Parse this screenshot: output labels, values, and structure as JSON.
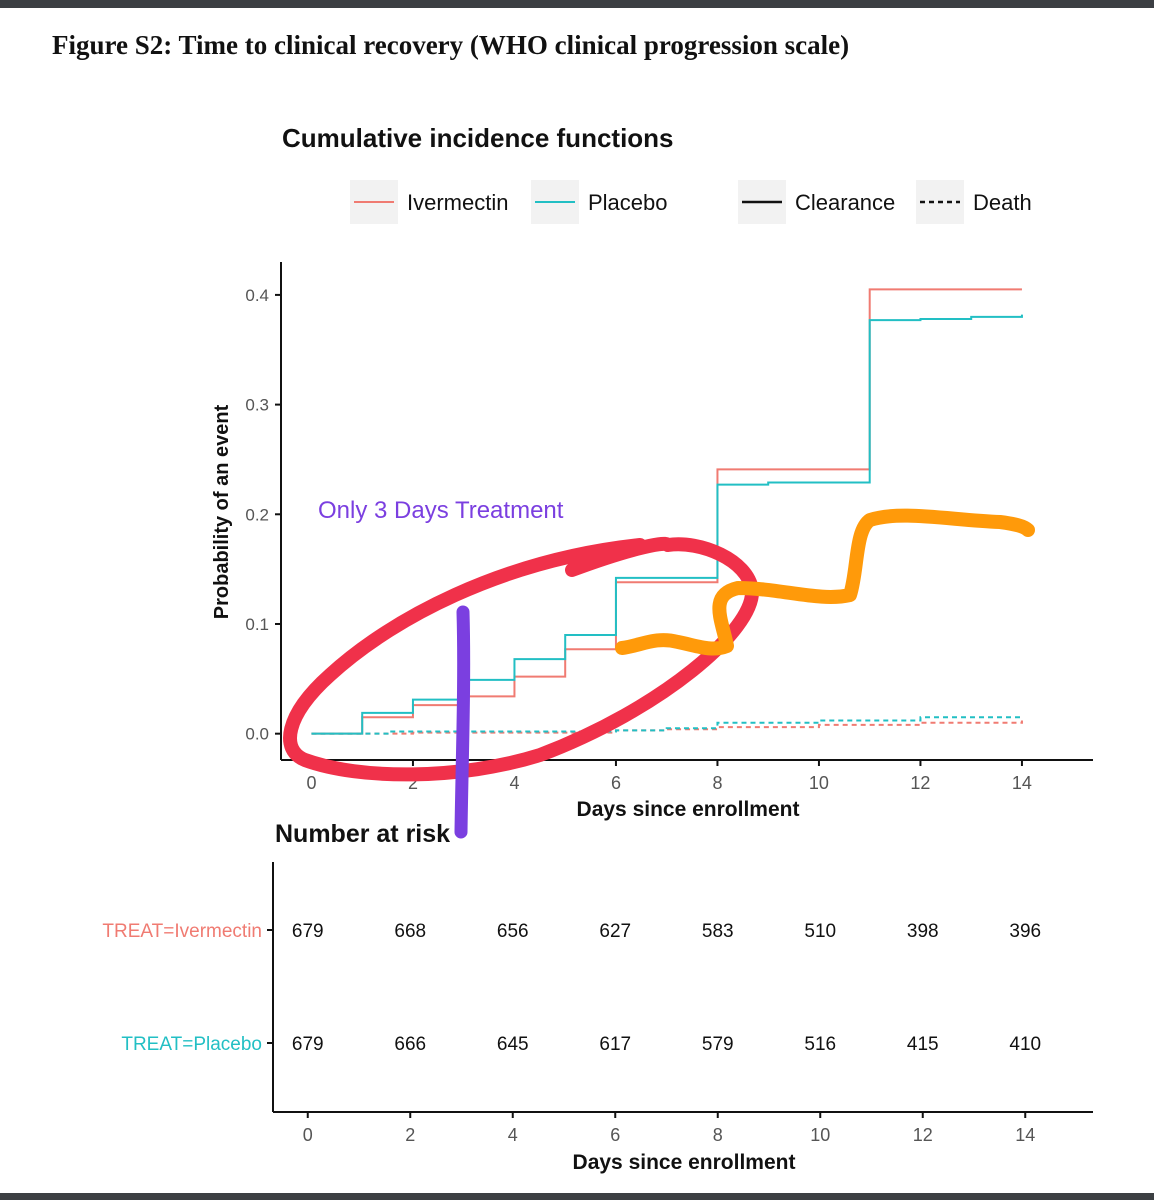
{
  "figure_title": "Figure S2: Time to clinical recovery (WHO clinical progression scale)",
  "colors": {
    "ivermectin": "#f07b72",
    "placebo": "#22bfc4",
    "annotation_red": "#f0314a",
    "annotation_orange": "#ff9a0a",
    "annotation_purple": "#7b3fe0"
  },
  "chart_data": [
    {
      "type": "line",
      "subtype": "step",
      "title": "Cumulative incidence functions",
      "xlabel": "Days since enrollment",
      "ylabel": "Probability of an event",
      "xlim": [
        -0.6,
        15.4
      ],
      "ylim": [
        -0.024,
        0.43
      ],
      "xticks": [
        0,
        2,
        4,
        6,
        8,
        10,
        12,
        14
      ],
      "xtick_labels": [
        "0",
        "2",
        "4",
        "6",
        "8",
        "10",
        "12",
        "14"
      ],
      "yticks": [
        0.0,
        0.1,
        0.2,
        0.3,
        0.4
      ],
      "ytick_labels": [
        "0.0",
        "0.1",
        "0.2",
        "0.3",
        "0.4"
      ],
      "grid": false,
      "legend": {
        "placement": "top",
        "color_entries": [
          {
            "label": "Ivermectin",
            "color": "#f07b72"
          },
          {
            "label": "Placebo",
            "color": "#22bfc4"
          }
        ],
        "linetype_entries": [
          {
            "label": "Clearance",
            "style": "solid"
          },
          {
            "label": "Death",
            "style": "dashed"
          }
        ]
      },
      "series": [
        {
          "group": "Ivermectin",
          "event": "Clearance",
          "color": "#f07b72",
          "style": "solid",
          "x": [
            0,
            1,
            2,
            3,
            4,
            5,
            6,
            8,
            11,
            14
          ],
          "y": [
            0,
            0.015,
            0.026,
            0.034,
            0.052,
            0.077,
            0.138,
            0.241,
            0.405,
            0.405
          ]
        },
        {
          "group": "Placebo",
          "event": "Clearance",
          "color": "#22bfc4",
          "style": "solid",
          "x": [
            0,
            1,
            2,
            3,
            4,
            5,
            6,
            8,
            9,
            11,
            12,
            13,
            14
          ],
          "y": [
            0,
            0.019,
            0.031,
            0.049,
            0.068,
            0.09,
            0.142,
            0.227,
            0.229,
            0.377,
            0.378,
            0.38,
            0.382
          ]
        },
        {
          "group": "Ivermectin",
          "event": "Death",
          "color": "#f07b72",
          "style": "dashed",
          "x": [
            0,
            2,
            6,
            7,
            8,
            10,
            12,
            14
          ],
          "y": [
            0,
            0.001,
            0.003,
            0.004,
            0.006,
            0.008,
            0.01,
            0.012
          ]
        },
        {
          "group": "Placebo",
          "event": "Death",
          "color": "#22bfc4",
          "style": "dashed",
          "x": [
            0,
            1.5,
            6,
            7,
            8,
            10,
            12,
            14
          ],
          "y": [
            0,
            0.002,
            0.003,
            0.005,
            0.01,
            0.012,
            0.015,
            0.016
          ]
        }
      ]
    },
    {
      "type": "table",
      "title": "Number at risk",
      "xlabel": "Days since enrollment",
      "xticks": [
        0,
        2,
        4,
        6,
        8,
        10,
        12,
        14
      ],
      "xtick_labels": [
        "0",
        "2",
        "4",
        "6",
        "8",
        "10",
        "12",
        "14"
      ],
      "rows": [
        {
          "label": "TREAT=Ivermectin",
          "color": "#f07b72",
          "values": [
            "679",
            "668",
            "656",
            "627",
            "583",
            "510",
            "398",
            "396"
          ]
        },
        {
          "label": "TREAT=Placebo",
          "color": "#22bfc4",
          "values": [
            "679",
            "666",
            "645",
            "617",
            "579",
            "516",
            "415",
            "410"
          ]
        }
      ]
    }
  ],
  "annotations": {
    "treatment_note": "Only 3 Days  Treatment"
  }
}
